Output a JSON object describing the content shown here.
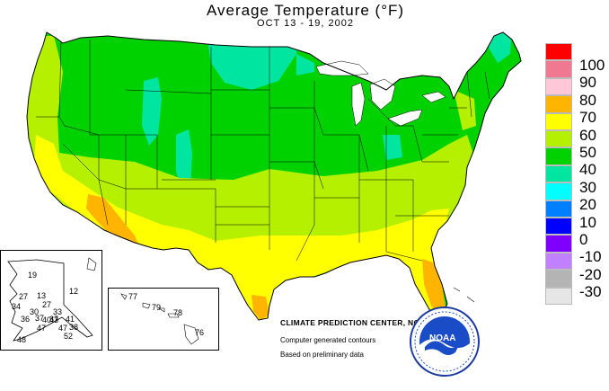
{
  "header": {
    "title": "Average Temperature (°F)",
    "subtitle": "OCT 13 - 19, 2002"
  },
  "legend": {
    "items": [
      {
        "label": "100",
        "color": "#ff0000"
      },
      {
        "label": "90",
        "color": "#f07890"
      },
      {
        "label": "80",
        "color": "#ffc8d8"
      },
      {
        "label": "70",
        "color": "#ffb400"
      },
      {
        "label": "60",
        "color": "#ffff00"
      },
      {
        "label": "50",
        "color": "#b4f000"
      },
      {
        "label": "40",
        "color": "#00d200"
      },
      {
        "label": "30",
        "color": "#00e6a0"
      },
      {
        "label": "20",
        "color": "#00ffff"
      },
      {
        "label": "10",
        "color": "#0080ff"
      },
      {
        "label": "0",
        "color": "#0000ff"
      },
      {
        "label": "-10",
        "color": "#8000ff"
      },
      {
        "label": "-20",
        "color": "#c080ff"
      },
      {
        "label": "-30",
        "color": "#b4b4b4"
      },
      {
        "label": "",
        "color": "#e6e6e6"
      }
    ]
  },
  "credits": {
    "line1": "CLIMATE PREDICTION CENTER, NOAA",
    "line2": "Computer generated contours",
    "line3": "Based on preliminary data"
  },
  "alaska": {
    "labels": [
      "19",
      "12",
      "27",
      "13",
      "27",
      "34",
      "30",
      "36",
      "37",
      "40",
      "37",
      "33",
      "41",
      "43",
      "38",
      "47",
      "47",
      "52",
      "48"
    ]
  },
  "hawaii": {
    "labels": [
      "77",
      "79",
      "78",
      "76"
    ]
  },
  "logo": {
    "text": "NOAA"
  }
}
